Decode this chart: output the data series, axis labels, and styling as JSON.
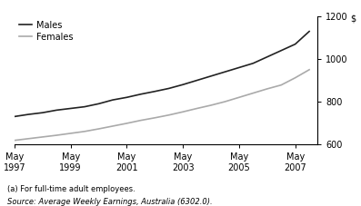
{
  "males": {
    "x": [
      1997,
      1997.5,
      1998,
      1998.5,
      1999,
      1999.5,
      2000,
      2000.5,
      2001,
      2001.5,
      2002,
      2002.5,
      2003,
      2003.5,
      2004,
      2004.5,
      2005,
      2005.5,
      2006,
      2006.5,
      2007,
      2007.5
    ],
    "y": [
      730,
      740,
      748,
      760,
      768,
      776,
      790,
      808,
      820,
      835,
      848,
      862,
      880,
      900,
      920,
      940,
      960,
      980,
      1010,
      1040,
      1070,
      1130
    ]
  },
  "females": {
    "x": [
      1997,
      1997.5,
      1998,
      1998.5,
      1999,
      1999.5,
      2000,
      2000.5,
      2001,
      2001.5,
      2002,
      2002.5,
      2003,
      2003.5,
      2004,
      2004.5,
      2005,
      2005.5,
      2006,
      2006.5,
      2007,
      2007.5
    ],
    "y": [
      618,
      626,
      634,
      642,
      651,
      660,
      672,
      685,
      698,
      712,
      724,
      737,
      752,
      768,
      783,
      800,
      820,
      840,
      860,
      878,
      912,
      950
    ]
  },
  "males_color": "#222222",
  "females_color": "#aaaaaa",
  "xlim": [
    1997,
    2007.8
  ],
  "ylim": [
    600,
    1200
  ],
  "yticks": [
    600,
    800,
    1000,
    1200
  ],
  "xticks": [
    1997,
    1999,
    2001,
    2003,
    2005,
    2007
  ],
  "xtick_labels": [
    "May\n1997",
    "May\n1999",
    "May\n2001",
    "May\n2003",
    "May\n2005",
    "May\n2007"
  ],
  "ylabel": "$",
  "legend_males": "Males",
  "legend_females": "Females",
  "footnote1": "(a) For full-time adult employees.",
  "footnote2": "Source: Average Weekly Earnings, Australia (6302.0).",
  "line_width": 1.2
}
